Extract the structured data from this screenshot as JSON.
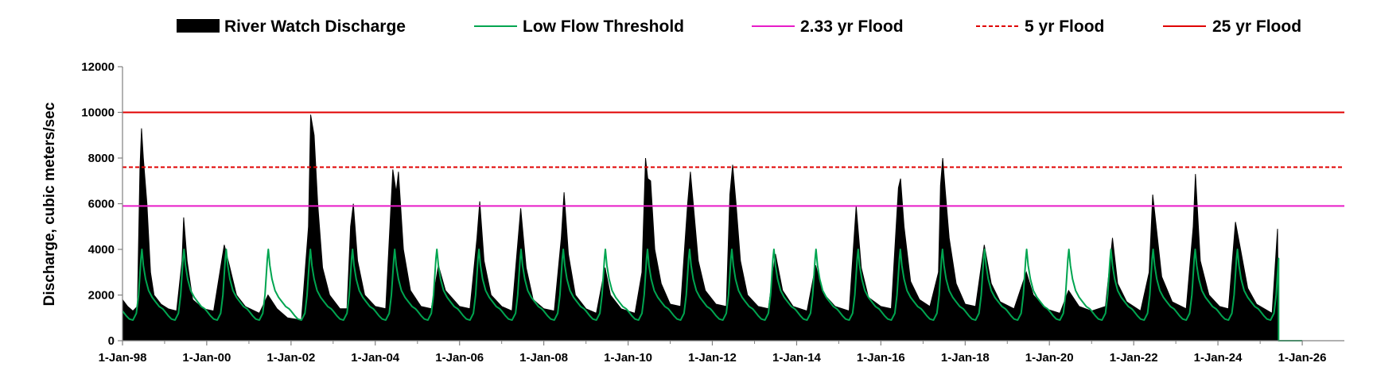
{
  "chart_data": {
    "type": "area",
    "title": "",
    "xlabel": "",
    "ylabel": "Discharge, cubic meters/sec",
    "ylim": [
      0,
      12000
    ],
    "yticks": [
      0,
      2000,
      4000,
      6000,
      8000,
      10000,
      12000
    ],
    "xlim": [
      "1998-01-01",
      "2027-01-01"
    ],
    "xticks": [
      {
        "date": "1998-01-01",
        "label": "1-Jan-98"
      },
      {
        "date": "2000-01-01",
        "label": "1-Jan-00"
      },
      {
        "date": "2002-01-01",
        "label": "1-Jan-02"
      },
      {
        "date": "2004-01-01",
        "label": "1-Jan-04"
      },
      {
        "date": "2006-01-01",
        "label": "1-Jan-06"
      },
      {
        "date": "2008-01-01",
        "label": "1-Jan-08"
      },
      {
        "date": "2010-01-01",
        "label": "1-Jan-10"
      },
      {
        "date": "2012-01-01",
        "label": "1-Jan-12"
      },
      {
        "date": "2014-01-01",
        "label": "1-Jan-14"
      },
      {
        "date": "2016-01-01",
        "label": "1-Jan-16"
      },
      {
        "date": "2018-01-01",
        "label": "1-Jan-18"
      },
      {
        "date": "2020-01-01",
        "label": "1-Jan-20"
      },
      {
        "date": "2022-01-01",
        "label": "1-Jan-22"
      },
      {
        "date": "2024-01-01",
        "label": "1-Jan-24"
      },
      {
        "date": "2026-01-01",
        "label": "1-Jan-26"
      }
    ],
    "grid": false,
    "legend_position": "top",
    "series": [
      {
        "name": "River Watch Discharge",
        "style": "filled-area",
        "color": "#000000",
        "points": [
          [
            "1998-01-01",
            1800
          ],
          [
            "1998-02-15",
            1500
          ],
          [
            "1998-04-01",
            1300
          ],
          [
            "1998-05-10",
            1500
          ],
          [
            "1998-06-01",
            7500
          ],
          [
            "1998-06-15",
            9300
          ],
          [
            "1998-07-01",
            8000
          ],
          [
            "1998-08-01",
            6000
          ],
          [
            "1998-09-01",
            3000
          ],
          [
            "1998-10-01",
            2000
          ],
          [
            "1998-12-01",
            1600
          ],
          [
            "1999-02-01",
            1400
          ],
          [
            "1999-04-15",
            1300
          ],
          [
            "1999-06-01",
            3500
          ],
          [
            "1999-06-15",
            5400
          ],
          [
            "1999-07-15",
            3500
          ],
          [
            "1999-09-01",
            1800
          ],
          [
            "1999-12-01",
            1400
          ],
          [
            "2000-03-01",
            1300
          ],
          [
            "2000-06-01",
            4200
          ],
          [
            "2000-07-15",
            3300
          ],
          [
            "2000-09-15",
            2000
          ],
          [
            "2000-12-01",
            1500
          ],
          [
            "2001-04-01",
            1200
          ],
          [
            "2001-06-15",
            2000
          ],
          [
            "2001-09-01",
            1400
          ],
          [
            "2001-12-01",
            1000
          ],
          [
            "2002-04-01",
            900
          ],
          [
            "2002-06-01",
            5000
          ],
          [
            "2002-06-20",
            9900
          ],
          [
            "2002-07-20",
            9000
          ],
          [
            "2002-08-20",
            6000
          ],
          [
            "2002-10-01",
            3200
          ],
          [
            "2002-12-01",
            2000
          ],
          [
            "2003-03-01",
            1400
          ],
          [
            "2003-05-01",
            1400
          ],
          [
            "2003-06-01",
            5000
          ],
          [
            "2003-06-25",
            6000
          ],
          [
            "2003-08-01",
            3500
          ],
          [
            "2003-10-01",
            2000
          ],
          [
            "2004-01-01",
            1500
          ],
          [
            "2004-04-01",
            1400
          ],
          [
            "2004-06-01",
            7500
          ],
          [
            "2004-07-01",
            6500
          ],
          [
            "2004-07-20",
            7400
          ],
          [
            "2004-09-01",
            4000
          ],
          [
            "2004-11-01",
            2200
          ],
          [
            "2005-02-01",
            1500
          ],
          [
            "2005-05-01",
            1400
          ],
          [
            "2005-07-01",
            3300
          ],
          [
            "2005-09-01",
            2200
          ],
          [
            "2006-01-01",
            1500
          ],
          [
            "2006-04-01",
            1400
          ],
          [
            "2006-06-01",
            4500
          ],
          [
            "2006-06-25",
            6100
          ],
          [
            "2006-08-01",
            3500
          ],
          [
            "2006-10-01",
            2000
          ],
          [
            "2007-01-01",
            1500
          ],
          [
            "2007-04-01",
            1300
          ],
          [
            "2007-06-15",
            5800
          ],
          [
            "2007-08-01",
            3200
          ],
          [
            "2007-10-01",
            1800
          ],
          [
            "2008-01-01",
            1400
          ],
          [
            "2008-04-01",
            1300
          ],
          [
            "2008-06-01",
            4500
          ],
          [
            "2008-06-25",
            6500
          ],
          [
            "2008-08-01",
            3800
          ],
          [
            "2008-10-01",
            2000
          ],
          [
            "2009-01-01",
            1400
          ],
          [
            "2009-04-01",
            1200
          ],
          [
            "2009-06-15",
            3200
          ],
          [
            "2009-08-01",
            2000
          ],
          [
            "2009-11-01",
            1400
          ],
          [
            "2010-03-01",
            1200
          ],
          [
            "2010-05-01",
            3000
          ],
          [
            "2010-06-01",
            8000
          ],
          [
            "2010-06-20",
            7100
          ],
          [
            "2010-07-15",
            7000
          ],
          [
            "2010-08-20",
            4000
          ],
          [
            "2010-10-15",
            2500
          ],
          [
            "2011-01-01",
            1600
          ],
          [
            "2011-04-01",
            1500
          ],
          [
            "2011-06-01",
            6000
          ],
          [
            "2011-06-25",
            7400
          ],
          [
            "2011-07-20",
            6000
          ],
          [
            "2011-09-01",
            3500
          ],
          [
            "2011-11-01",
            2200
          ],
          [
            "2012-02-01",
            1600
          ],
          [
            "2012-05-01",
            1500
          ],
          [
            "2012-06-01",
            6400
          ],
          [
            "2012-06-25",
            7700
          ],
          [
            "2012-07-25",
            6000
          ],
          [
            "2012-09-01",
            3500
          ],
          [
            "2012-11-01",
            2000
          ],
          [
            "2013-02-01",
            1500
          ],
          [
            "2013-05-01",
            1400
          ],
          [
            "2013-07-01",
            3800
          ],
          [
            "2013-09-01",
            2200
          ],
          [
            "2013-12-01",
            1500
          ],
          [
            "2014-04-01",
            1300
          ],
          [
            "2014-06-15",
            3300
          ],
          [
            "2014-08-15",
            2100
          ],
          [
            "2014-12-01",
            1500
          ],
          [
            "2015-04-01",
            1300
          ],
          [
            "2015-06-01",
            5900
          ],
          [
            "2015-07-15",
            3200
          ],
          [
            "2015-09-15",
            1900
          ],
          [
            "2016-01-01",
            1500
          ],
          [
            "2016-04-01",
            1400
          ],
          [
            "2016-06-01",
            6700
          ],
          [
            "2016-06-20",
            7100
          ],
          [
            "2016-07-20",
            5000
          ],
          [
            "2016-09-15",
            2600
          ],
          [
            "2016-12-01",
            1800
          ],
          [
            "2017-03-01",
            1500
          ],
          [
            "2017-05-15",
            3000
          ],
          [
            "2017-06-01",
            6800
          ],
          [
            "2017-06-20",
            8000
          ],
          [
            "2017-07-10",
            6700
          ],
          [
            "2017-08-15",
            4500
          ],
          [
            "2017-10-15",
            2500
          ],
          [
            "2018-01-01",
            1600
          ],
          [
            "2018-04-01",
            1500
          ],
          [
            "2018-06-15",
            4200
          ],
          [
            "2018-08-15",
            2500
          ],
          [
            "2018-11-01",
            1700
          ],
          [
            "2019-03-01",
            1400
          ],
          [
            "2019-06-15",
            3000
          ],
          [
            "2019-08-15",
            2000
          ],
          [
            "2019-12-01",
            1400
          ],
          [
            "2020-04-01",
            1200
          ],
          [
            "2020-06-15",
            2200
          ],
          [
            "2020-09-15",
            1500
          ],
          [
            "2021-01-01",
            1300
          ],
          [
            "2021-05-01",
            1500
          ],
          [
            "2021-07-01",
            4500
          ],
          [
            "2021-08-15",
            2500
          ],
          [
            "2021-11-01",
            1700
          ],
          [
            "2022-03-01",
            1300
          ],
          [
            "2022-05-15",
            3000
          ],
          [
            "2022-06-15",
            6400
          ],
          [
            "2022-07-15",
            5000
          ],
          [
            "2022-09-01",
            2800
          ],
          [
            "2022-12-01",
            1700
          ],
          [
            "2023-04-01",
            1400
          ],
          [
            "2023-06-01",
            5000
          ],
          [
            "2023-06-20",
            7300
          ],
          [
            "2023-08-01",
            3500
          ],
          [
            "2023-10-15",
            2000
          ],
          [
            "2024-01-15",
            1500
          ],
          [
            "2024-04-01",
            1400
          ],
          [
            "2024-06-01",
            5200
          ],
          [
            "2024-07-15",
            4000
          ],
          [
            "2024-09-15",
            2300
          ],
          [
            "2024-12-01",
            1600
          ],
          [
            "2025-04-15",
            1200
          ],
          [
            "2025-06-01",
            4900
          ],
          [
            "2025-06-10",
            0
          ]
        ]
      },
      {
        "name": "Low Flow Threshold",
        "style": "line",
        "color": "#00A550",
        "annual_cycle": [
          [
            "01-01",
            1300
          ],
          [
            "02-01",
            1100
          ],
          [
            "03-01",
            950
          ],
          [
            "04-01",
            900
          ],
          [
            "05-01",
            1200
          ],
          [
            "05-20",
            2000
          ],
          [
            "06-10",
            3600
          ],
          [
            "06-18",
            4000
          ],
          [
            "07-01",
            3300
          ],
          [
            "07-20",
            2700
          ],
          [
            "08-15",
            2200
          ],
          [
            "09-15",
            1900
          ],
          [
            "10-15",
            1700
          ],
          [
            "11-15",
            1500
          ],
          [
            "12-15",
            1400
          ]
        ],
        "cycle_start": "1998-01-01",
        "cycle_end": "2025-06-10",
        "after_end": [
          [
            "2025-06-10",
            0
          ],
          [
            "2026-01-01",
            0
          ]
        ]
      },
      {
        "name": "2.33 yr Flood",
        "style": "hline",
        "color": "#E81CC8",
        "value": 5900
      },
      {
        "name": "5 yr Flood",
        "style": "dashed-hline",
        "color": "#E00000",
        "value": 7600
      },
      {
        "name": "25 yr Flood",
        "style": "hline",
        "color": "#E00000",
        "value": 10000
      }
    ]
  }
}
